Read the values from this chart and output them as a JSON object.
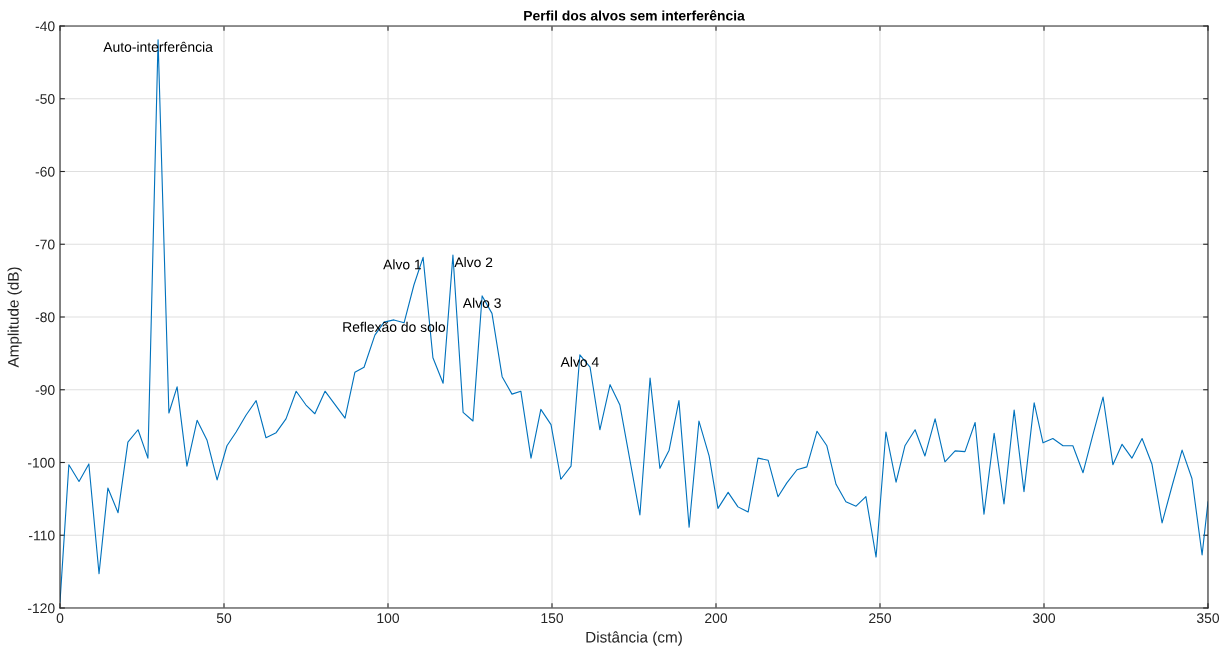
{
  "chart_data": {
    "type": "line",
    "title": "Perfil dos alvos sem interferência",
    "xlabel": "Distância (cm)",
    "ylabel": "Amplitude (dB)",
    "xlim": [
      0,
      350
    ],
    "ylim": [
      -120,
      -40
    ],
    "xticks": [
      0,
      50,
      100,
      150,
      200,
      250,
      300,
      350
    ],
    "yticks": [
      -120,
      -110,
      -100,
      -90,
      -80,
      -70,
      -60,
      -50,
      -40
    ],
    "grid": true,
    "legend": false,
    "series": [
      {
        "color": "#0072bd",
        "x": [
          0,
          2.7,
          5.8,
          8.8,
          11.9,
          14.6,
          17.7,
          20.7,
          23.8,
          26.8,
          29.9,
          33.2,
          35.7,
          38.7,
          41.8,
          44.8,
          47.9,
          50.9,
          53.7,
          56.7,
          59.8,
          62.8,
          65.9,
          68.9,
          72.0,
          75.0,
          77.7,
          80.8,
          83.8,
          86.9,
          89.9,
          92.7,
          96.0,
          98.8,
          101.8,
          104.9,
          107.9,
          110.7,
          113.7,
          116.8,
          119.8,
          122.9,
          125.9,
          128.7,
          131.7,
          134.8,
          137.8,
          140.5,
          143.6,
          146.6,
          149.7,
          152.7,
          155.8,
          158.5,
          161.6,
          164.6,
          167.7,
          170.7,
          176.8,
          179.9,
          182.9,
          185.7,
          188.7,
          191.8,
          194.8,
          197.9,
          200.6,
          203.7,
          206.7,
          209.8,
          212.8,
          215.9,
          218.9,
          221.6,
          224.7,
          227.7,
          230.8,
          233.8,
          236.6,
          239.6,
          242.7,
          245.7,
          248.8,
          251.8,
          254.9,
          257.6,
          260.7,
          263.7,
          266.8,
          269.8,
          272.9,
          275.9,
          279.0,
          281.7,
          284.8,
          287.8,
          290.9,
          293.9,
          297.0,
          299.7,
          302.7,
          305.8,
          308.8,
          311.9,
          314.9,
          318.0,
          321.0,
          323.8,
          326.8,
          329.9,
          332.9,
          336.0,
          339.0,
          342.1,
          345.1,
          348.2,
          350
        ],
        "values": [
          -119.2,
          -100.3,
          -102.6,
          -100.2,
          -115.3,
          -103.5,
          -106.9,
          -97.2,
          -95.5,
          -99.4,
          -41.9,
          -93.2,
          -89.6,
          -100.5,
          -94.2,
          -96.9,
          -102.4,
          -97.7,
          -95.8,
          -93.5,
          -91.5,
          -96.6,
          -95.9,
          -94.0,
          -90.2,
          -92.1,
          -93.3,
          -90.2,
          -92.0,
          -93.9,
          -87.6,
          -86.9,
          -82.5,
          -80.7,
          -80.4,
          -80.8,
          -75.6,
          -71.8,
          -85.6,
          -89.1,
          -71.5,
          -93.1,
          -94.3,
          -77.1,
          -79.5,
          -88.2,
          -90.6,
          -90.2,
          -99.4,
          -92.7,
          -94.8,
          -102.3,
          -100.5,
          -85.2,
          -86.9,
          -95.5,
          -89.3,
          -92.1,
          -107.2,
          -88.4,
          -100.8,
          -98.3,
          -91.5,
          -108.9,
          -94.3,
          -99.1,
          -106.3,
          -104.1,
          -106.1,
          -106.8,
          -99.4,
          -99.7,
          -104.7,
          -102.8,
          -101.0,
          -100.6,
          -95.7,
          -97.7,
          -103.0,
          -105.4,
          -106.0,
          -104.7,
          -113.0,
          -95.8,
          -102.7,
          -97.7,
          -95.5,
          -99.1,
          -94.0,
          -99.9,
          -98.4,
          -98.5,
          -94.5,
          -107.1,
          -96.0,
          -105.7,
          -92.8,
          -104.0,
          -91.8,
          -97.3,
          -96.7,
          -97.7,
          -97.7,
          -101.4,
          -96.2,
          -91.0,
          -100.3,
          -97.5,
          -99.4,
          -96.7,
          -100.2,
          -108.3,
          -103.3,
          -98.3,
          -102.2,
          -112.7,
          -105.4
        ]
      }
    ],
    "annotations": [
      {
        "text": "Auto-interferência",
        "x": 29.9,
        "y": -41.9
      },
      {
        "text": "Alvo 1",
        "x": 110.7,
        "y": -71.8
      },
      {
        "text": "Alvo 2",
        "x": 119.8,
        "y": -71.5
      },
      {
        "text": "Alvo 3",
        "x": 128.7,
        "y": -77.1
      },
      {
        "text": "Reflexão do solo",
        "x": 101.8,
        "y": -80.4
      },
      {
        "text": "Alvo 4",
        "x": 158.5,
        "y": -85.2
      }
    ]
  }
}
